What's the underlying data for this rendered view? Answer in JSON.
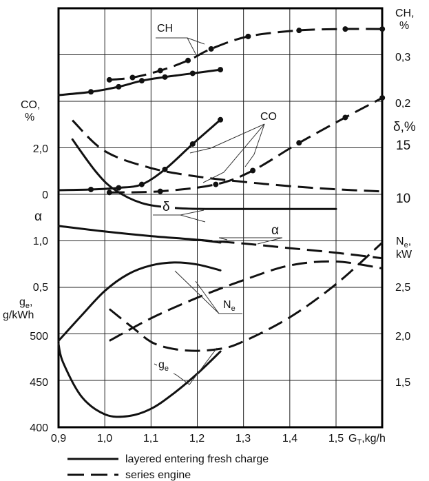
{
  "chart_data": {
    "type": "line",
    "x_axis": {
      "label": "G",
      "label_subscript": "T",
      "label_unit": ",kg/h",
      "range": [
        0.9,
        1.6
      ],
      "ticks": [
        "0,9",
        "1,0",
        "1,1",
        "1,2",
        "1,3",
        "1,4",
        "1,5"
      ]
    },
    "left_axes": {
      "co": {
        "label": "CO,",
        "unit": "%",
        "ticks": [
          "2,0",
          "0"
        ]
      },
      "alpha": {
        "label": "α",
        "ticks": [
          "1,0",
          "0,5"
        ]
      },
      "ge": {
        "label": "g",
        "label_subscript": "e",
        "label_unit": ",",
        "unit": "g/kWh",
        "ticks": [
          "500",
          "450",
          "400"
        ]
      }
    },
    "right_axes": {
      "ch": {
        "label": "CH,",
        "unit": "%",
        "ticks": [
          "0,3",
          "0,2"
        ]
      },
      "delta": {
        "label": "δ,%",
        "ticks": [
          "15",
          "10"
        ]
      },
      "ne": {
        "label": "N",
        "label_subscript": "e",
        "label_unit": ",",
        "unit": "kW",
        "ticks": [
          "2,5",
          "2,0",
          "1,5"
        ]
      }
    },
    "curve_labels": {
      "ch": "CH",
      "co": "CO",
      "delta": "δ",
      "alpha": "α",
      "ne": "N",
      "ne_sub": "e",
      "ge": "g",
      "ge_sub": "e"
    },
    "legend": {
      "placement": "bottom",
      "solid": "layered entering fresh charge",
      "dashed": "series engine"
    },
    "series": [
      {
        "curve": "CH",
        "style": "solid",
        "axis": "ch",
        "x": [
          0.9,
          0.97,
          1.03,
          1.08,
          1.13,
          1.19,
          1.25
        ],
        "y": [
          0.215,
          0.222,
          0.233,
          0.246,
          0.254,
          0.262,
          0.27
        ]
      },
      {
        "curve": "CH",
        "style": "dashed",
        "axis": "ch",
        "x": [
          1.01,
          1.06,
          1.12,
          1.18,
          1.23,
          1.31,
          1.42,
          1.52,
          1.6
        ],
        "y": [
          0.248,
          0.253,
          0.268,
          0.29,
          0.315,
          0.342,
          0.355,
          0.358,
          0.358
        ]
      },
      {
        "curve": "CO",
        "style": "solid",
        "axis": "co",
        "x": [
          0.9,
          0.97,
          1.03,
          1.08,
          1.13,
          1.19,
          1.25
        ],
        "y": [
          0.15,
          0.18,
          0.25,
          0.4,
          1.05,
          2.15,
          3.2
        ]
      },
      {
        "curve": "CO",
        "style": "dashed",
        "axis": "co",
        "x": [
          1.01,
          1.12,
          1.24,
          1.32,
          1.42,
          1.52,
          1.6
        ],
        "y": [
          0.05,
          0.1,
          0.4,
          1.0,
          2.2,
          3.3,
          4.15
        ]
      },
      {
        "curve": "δ",
        "style": "solid",
        "axis": "delta",
        "x": [
          0.93,
          0.98,
          1.02,
          1.08,
          1.15,
          1.22,
          1.35,
          1.5
        ],
        "y": [
          15.5,
          12.5,
          10.8,
          9.5,
          9.05,
          8.95,
          8.95,
          8.95
        ]
      },
      {
        "curve": "δ",
        "style": "dashed",
        "axis": "delta",
        "x": [
          0.93,
          1.0,
          1.1,
          1.2,
          1.3,
          1.4,
          1.5,
          1.6
        ],
        "y": [
          17.3,
          14.4,
          12.8,
          12.0,
          11.5,
          11.1,
          10.8,
          10.6
        ]
      },
      {
        "curve": "α",
        "style": "solid",
        "axis": "alpha",
        "x": [
          0.9,
          1.0,
          1.1,
          1.2,
          1.25
        ],
        "y": [
          1.15,
          1.09,
          1.04,
          1.0,
          0.97
        ]
      },
      {
        "curve": "α",
        "style": "dashed",
        "axis": "alpha",
        "x": [
          1.2,
          1.3,
          1.4,
          1.5,
          1.6
        ],
        "y": [
          1.0,
          0.96,
          0.91,
          0.86,
          0.8
        ]
      },
      {
        "curve": "Ne",
        "style": "solid",
        "axis": "ne",
        "x": [
          0.9,
          0.95,
          1.0,
          1.05,
          1.1,
          1.15,
          1.2,
          1.25
        ],
        "y": [
          1.94,
          2.2,
          2.45,
          2.62,
          2.71,
          2.74,
          2.72,
          2.66
        ]
      },
      {
        "curve": "Ne",
        "style": "dashed",
        "axis": "ne",
        "x": [
          1.01,
          1.1,
          1.2,
          1.3,
          1.4,
          1.5,
          1.6
        ],
        "y": [
          1.94,
          2.17,
          2.38,
          2.56,
          2.71,
          2.75,
          2.68
        ]
      },
      {
        "curve": "ge",
        "style": "solid",
        "axis": "ge",
        "x": [
          1.25,
          1.2,
          1.15,
          1.1,
          1.05,
          1.0,
          0.95,
          0.91,
          0.9
        ],
        "y": [
          482,
          458,
          437,
          420,
          412,
          414,
          433,
          470,
          490
        ]
      },
      {
        "curve": "ge",
        "style": "dashed",
        "axis": "ge",
        "x": [
          1.01,
          1.06,
          1.11,
          1.18,
          1.25,
          1.3,
          1.4,
          1.5,
          1.6
        ],
        "y": [
          528,
          508,
          490,
          483,
          485,
          493,
          519,
          555,
          600
        ]
      }
    ]
  }
}
